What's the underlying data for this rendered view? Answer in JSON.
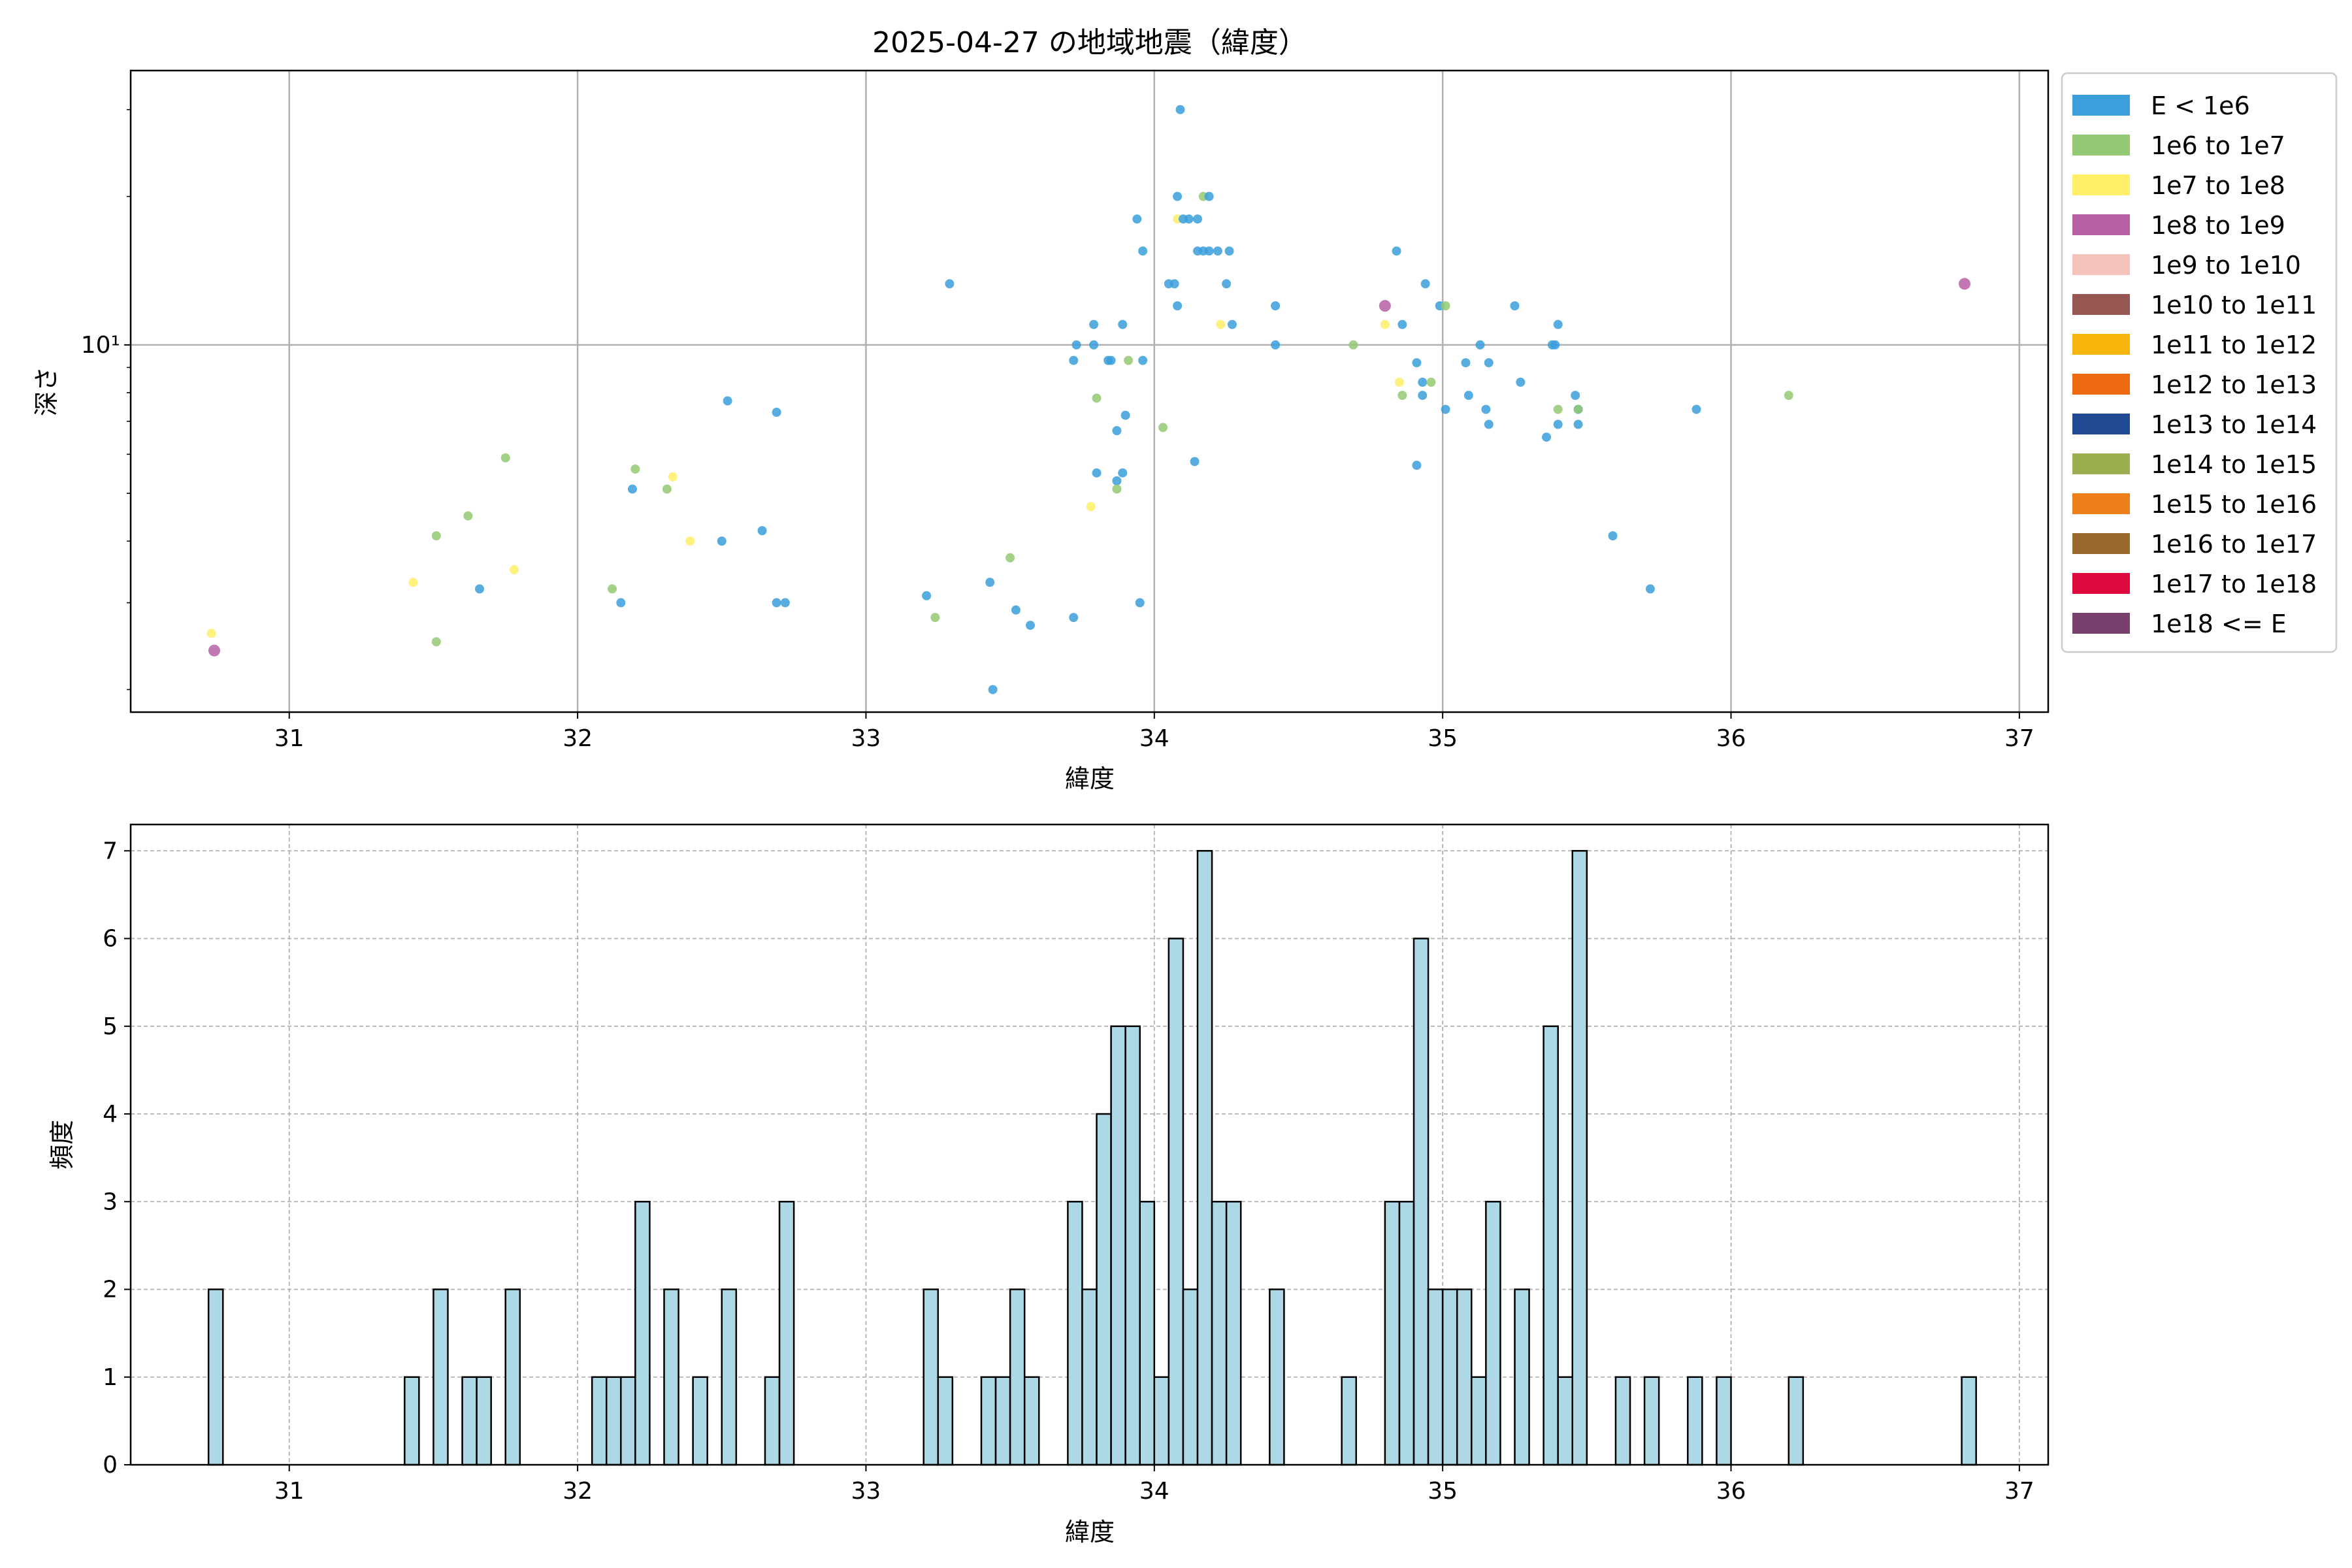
{
  "chart_data": [
    {
      "type": "scatter",
      "title": "2025-04-27 の地域地震（緯度）",
      "xlabel": "緯度",
      "ylabel": "深さ",
      "xlim": [
        30.45,
        37.1
      ],
      "ylim": [
        1.8,
        36
      ],
      "yscale": "log",
      "xticks": [
        31,
        32,
        33,
        34,
        35,
        36,
        37
      ],
      "yticks": [
        10
      ],
      "ytick_labels": [
        "10¹"
      ],
      "grid": true,
      "legend_position": "outside-right",
      "legend": [
        {
          "label": "E < 1e6",
          "color": "#3a9fdb"
        },
        {
          "label": "1e6 to 1e7",
          "color": "#93c973"
        },
        {
          "label": "1e7 to 1e8",
          "color": "#ffee66"
        },
        {
          "label": "1e8 to 1e9",
          "color": "#b660a6"
        },
        {
          "label": "1e9 to 1e10",
          "color": "#f6c2bc"
        },
        {
          "label": "1e10 to 1e11",
          "color": "#985650"
        },
        {
          "label": "1e11 to 1e12",
          "color": "#f7b40a"
        },
        {
          "label": "1e12 to 1e13",
          "color": "#ee6a10"
        },
        {
          "label": "1e13 to 1e14",
          "color": "#1f4a91"
        },
        {
          "label": "1e14 to 1e15",
          "color": "#9bae50"
        },
        {
          "label": "1e15 to 1e16",
          "color": "#ef7f1a"
        },
        {
          "label": "1e16 to 1e17",
          "color": "#98692e"
        },
        {
          "label": "1e17 to 1e18",
          "color": "#dc0a3c"
        },
        {
          "label": "1e18 <= E",
          "color": "#78406e"
        }
      ],
      "points": [
        [
          30.73,
          2.6,
          2
        ],
        [
          30.74,
          2.4,
          3
        ],
        [
          31.43,
          3.3,
          2
        ],
        [
          31.51,
          2.5,
          1
        ],
        [
          31.51,
          4.1,
          1
        ],
        [
          31.62,
          4.5,
          1
        ],
        [
          31.66,
          3.2,
          0
        ],
        [
          31.75,
          5.9,
          1
        ],
        [
          31.78,
          3.5,
          2
        ],
        [
          32.12,
          3.2,
          1
        ],
        [
          32.15,
          3.0,
          0
        ],
        [
          32.19,
          5.1,
          0
        ],
        [
          32.2,
          5.6,
          1
        ],
        [
          32.31,
          5.1,
          1
        ],
        [
          32.33,
          5.4,
          2
        ],
        [
          32.39,
          4.0,
          2
        ],
        [
          32.5,
          4.0,
          0
        ],
        [
          32.52,
          7.7,
          0
        ],
        [
          32.64,
          4.2,
          0
        ],
        [
          32.69,
          7.3,
          0
        ],
        [
          32.69,
          3.0,
          0
        ],
        [
          32.72,
          3.0,
          0
        ],
        [
          33.21,
          3.1,
          0
        ],
        [
          33.24,
          2.8,
          1
        ],
        [
          33.29,
          13.3,
          0
        ],
        [
          33.43,
          3.3,
          0
        ],
        [
          33.44,
          2.0,
          0
        ],
        [
          33.5,
          3.7,
          1
        ],
        [
          33.52,
          2.9,
          0
        ],
        [
          33.57,
          2.7,
          0
        ],
        [
          33.72,
          2.8,
          0
        ],
        [
          33.72,
          9.3,
          0
        ],
        [
          33.73,
          10.0,
          0
        ],
        [
          33.79,
          10.0,
          0
        ],
        [
          33.79,
          11.0,
          0
        ],
        [
          33.8,
          5.5,
          0
        ],
        [
          33.8,
          7.8,
          1
        ],
        [
          33.84,
          9.3,
          0
        ],
        [
          33.85,
          9.3,
          0
        ],
        [
          33.78,
          4.7,
          2
        ],
        [
          33.87,
          5.3,
          0
        ],
        [
          33.87,
          6.7,
          0
        ],
        [
          33.87,
          5.1,
          1
        ],
        [
          33.89,
          5.5,
          0
        ],
        [
          33.89,
          11.0,
          0
        ],
        [
          33.9,
          7.2,
          0
        ],
        [
          33.91,
          9.3,
          1
        ],
        [
          33.94,
          18.0,
          0
        ],
        [
          33.95,
          3.0,
          0
        ],
        [
          33.96,
          15.5,
          0
        ],
        [
          33.96,
          9.3,
          0
        ],
        [
          34.03,
          6.8,
          1
        ],
        [
          34.05,
          13.3,
          0
        ],
        [
          34.07,
          13.3,
          0
        ],
        [
          34.08,
          20.0,
          0
        ],
        [
          34.08,
          18.0,
          2
        ],
        [
          34.08,
          12.0,
          0
        ],
        [
          34.09,
          30.0,
          0
        ],
        [
          34.1,
          18.0,
          0
        ],
        [
          34.12,
          18.0,
          0
        ],
        [
          34.14,
          5.8,
          0
        ],
        [
          34.15,
          15.5,
          0
        ],
        [
          34.15,
          18.0,
          0
        ],
        [
          34.17,
          15.5,
          0
        ],
        [
          34.17,
          20.0,
          1
        ],
        [
          34.19,
          20.0,
          0
        ],
        [
          34.19,
          15.5,
          0
        ],
        [
          34.22,
          15.5,
          0
        ],
        [
          34.23,
          11.0,
          2
        ],
        [
          34.25,
          13.3,
          0
        ],
        [
          34.26,
          15.5,
          0
        ],
        [
          34.27,
          11.0,
          0
        ],
        [
          34.42,
          12.0,
          0
        ],
        [
          34.42,
          10.0,
          0
        ],
        [
          34.69,
          10.0,
          1
        ],
        [
          34.8,
          12.0,
          3
        ],
        [
          34.8,
          11.0,
          2
        ],
        [
          34.84,
          15.5,
          0
        ],
        [
          34.86,
          11.0,
          0
        ],
        [
          34.85,
          8.4,
          2
        ],
        [
          34.86,
          7.9,
          1
        ],
        [
          34.91,
          5.7,
          0
        ],
        [
          34.91,
          9.2,
          0
        ],
        [
          34.93,
          8.4,
          0
        ],
        [
          34.93,
          7.9,
          0
        ],
        [
          34.94,
          13.3,
          0
        ],
        [
          34.96,
          8.4,
          1
        ],
        [
          34.99,
          12.0,
          0
        ],
        [
          35.01,
          12.0,
          1
        ],
        [
          35.01,
          7.4,
          0
        ],
        [
          35.08,
          9.2,
          0
        ],
        [
          35.09,
          7.9,
          0
        ],
        [
          35.13,
          10.0,
          0
        ],
        [
          35.15,
          7.4,
          0
        ],
        [
          35.16,
          6.9,
          0
        ],
        [
          35.16,
          9.2,
          0
        ],
        [
          35.25,
          12.0,
          0
        ],
        [
          35.27,
          8.4,
          0
        ],
        [
          35.36,
          6.5,
          0
        ],
        [
          35.38,
          10.0,
          0
        ],
        [
          35.39,
          10.0,
          0
        ],
        [
          35.4,
          11.0,
          0
        ],
        [
          35.4,
          6.9,
          0
        ],
        [
          35.4,
          7.4,
          1
        ],
        [
          35.46,
          7.9,
          0
        ],
        [
          35.47,
          7.4,
          0
        ],
        [
          35.47,
          6.9,
          0
        ],
        [
          35.47,
          7.4,
          1
        ],
        [
          35.59,
          4.1,
          0
        ],
        [
          35.72,
          3.2,
          0
        ],
        [
          35.88,
          7.4,
          0
        ],
        [
          36.2,
          7.9,
          1
        ],
        [
          36.81,
          13.3,
          3
        ]
      ]
    },
    {
      "type": "bar",
      "xlabel": "緯度",
      "ylabel": "頻度",
      "xlim": [
        30.45,
        37.1
      ],
      "ylim": [
        0,
        7.3
      ],
      "xticks": [
        31,
        32,
        33,
        34,
        35,
        36,
        37
      ],
      "yticks": [
        0,
        1,
        2,
        3,
        4,
        5,
        6,
        7
      ],
      "grid": true,
      "bar_color": "#add8e6",
      "bin_width": 0.05,
      "bins": [
        [
          30.72,
          2
        ],
        [
          31.4,
          1
        ],
        [
          31.5,
          2
        ],
        [
          31.6,
          1
        ],
        [
          31.65,
          1
        ],
        [
          31.75,
          2
        ],
        [
          32.05,
          1
        ],
        [
          32.1,
          1
        ],
        [
          32.15,
          1
        ],
        [
          32.2,
          3
        ],
        [
          32.3,
          2
        ],
        [
          32.4,
          1
        ],
        [
          32.5,
          2
        ],
        [
          32.65,
          1
        ],
        [
          32.7,
          3
        ],
        [
          33.2,
          2
        ],
        [
          33.25,
          1
        ],
        [
          33.4,
          1
        ],
        [
          33.45,
          1
        ],
        [
          33.5,
          2
        ],
        [
          33.55,
          1
        ],
        [
          33.7,
          3
        ],
        [
          33.75,
          2
        ],
        [
          33.8,
          4
        ],
        [
          33.85,
          5
        ],
        [
          33.9,
          5
        ],
        [
          33.95,
          3
        ],
        [
          34.0,
          1
        ],
        [
          34.05,
          6
        ],
        [
          34.1,
          2
        ],
        [
          34.15,
          7
        ],
        [
          34.2,
          3
        ],
        [
          34.25,
          3
        ],
        [
          34.4,
          2
        ],
        [
          34.65,
          1
        ],
        [
          34.8,
          3
        ],
        [
          34.85,
          3
        ],
        [
          34.9,
          6
        ],
        [
          34.95,
          2
        ],
        [
          35.0,
          2
        ],
        [
          35.05,
          2
        ],
        [
          35.1,
          1
        ],
        [
          35.15,
          3
        ],
        [
          35.25,
          2
        ],
        [
          35.35,
          5
        ],
        [
          35.4,
          1
        ],
        [
          35.45,
          7
        ],
        [
          35.6,
          1
        ],
        [
          35.7,
          1
        ],
        [
          35.85,
          1
        ],
        [
          35.95,
          1
        ],
        [
          36.2,
          1
        ],
        [
          36.8,
          1
        ]
      ]
    }
  ]
}
